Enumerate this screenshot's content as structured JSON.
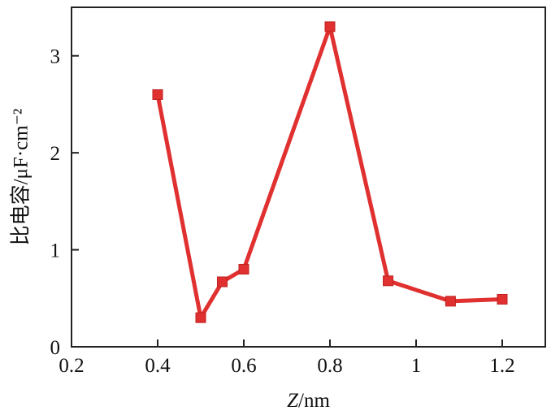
{
  "chart_data": {
    "type": "line",
    "xlabel_italic": "Z",
    "xlabel_unit": "/nm",
    "ylabel": "比电容/μF·cm⁻²",
    "xlim": [
      0.2,
      1.3
    ],
    "ylim": [
      0,
      3.5
    ],
    "xticks": [
      0.2,
      0.4,
      0.6,
      0.8,
      1.0,
      1.2
    ],
    "xtick_labels": [
      "0.2",
      "0.4",
      "0.6",
      "0.8",
      "1",
      "1.2"
    ],
    "yticks": [
      0,
      1,
      2,
      3
    ],
    "ytick_labels": [
      "0",
      "1",
      "2",
      "3"
    ],
    "grid": false,
    "series": [
      {
        "color": "#e03030",
        "marker": "square",
        "x": [
          0.4,
          0.5,
          0.55,
          0.6,
          0.8,
          0.935,
          1.08,
          1.2
        ],
        "y": [
          2.6,
          0.3,
          0.67,
          0.8,
          3.3,
          0.68,
          0.47,
          0.49
        ]
      }
    ]
  }
}
